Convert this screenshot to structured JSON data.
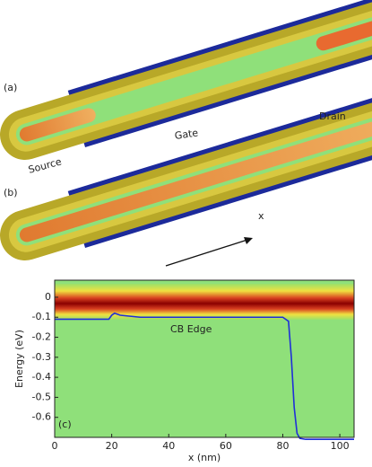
{
  "panels": {
    "a": {
      "label": "(a)",
      "source": "Source",
      "gate": "Gate",
      "drain": "Drain"
    },
    "b": {
      "label": "(b)",
      "axis": "x"
    }
  },
  "chart_data": {
    "type": "line",
    "panel_label": "(c)",
    "x_label": "x (nm)",
    "y_label": "Energy (eV)",
    "xlim": [
      0,
      105
    ],
    "ylim": [
      -0.7,
      0.085
    ],
    "xticks": [
      0,
      20,
      40,
      60,
      80,
      100
    ],
    "yticks": [
      0,
      -0.1,
      -0.2,
      -0.3,
      -0.4,
      -0.5,
      -0.6
    ],
    "x": [
      0,
      19,
      20,
      21,
      23,
      30,
      80,
      82,
      83,
      84,
      85,
      86,
      88,
      105
    ],
    "series": [
      {
        "name": "CB Edge",
        "color": "#1f2fd8",
        "values": [
          -0.11,
          -0.11,
          -0.09,
          -0.08,
          -0.09,
          -0.1,
          -0.1,
          -0.12,
          -0.3,
          -0.55,
          -0.68,
          -0.705,
          -0.71,
          -0.71
        ]
      }
    ]
  }
}
